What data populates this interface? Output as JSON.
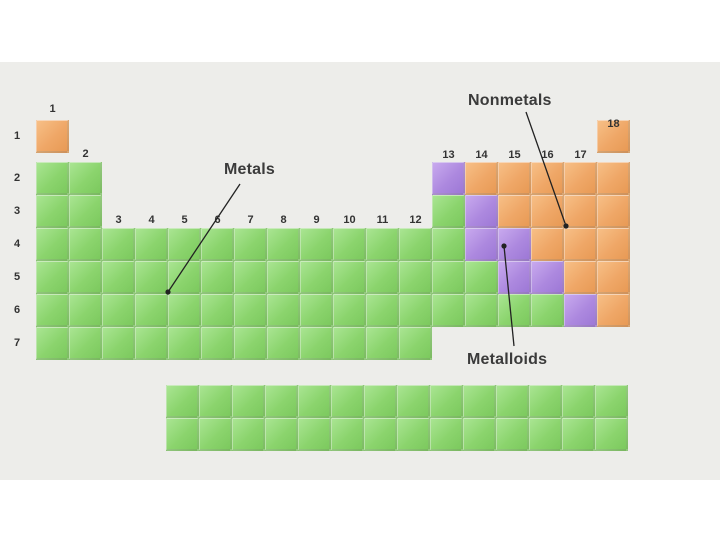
{
  "groups": [
    "1",
    "2",
    "3",
    "4",
    "5",
    "6",
    "7",
    "8",
    "9",
    "10",
    "11",
    "12",
    "13",
    "14",
    "15",
    "16",
    "17",
    "18"
  ],
  "periods": [
    "1",
    "2",
    "3",
    "4",
    "5",
    "6",
    "7"
  ],
  "labels": {
    "metals": "Metals",
    "nonmetals": "Nonmetals",
    "metalloids": "Metalloids"
  },
  "colors": {
    "metal": "#8bd46d",
    "nonmetal": "#efa767",
    "metalloid": "#ad89df",
    "background": "#ededea"
  },
  "metalloid_cells": [
    {
      "group": 13,
      "period": 2
    },
    {
      "group": 14,
      "period": 3
    },
    {
      "group": 14,
      "period": 4
    },
    {
      "group": 15,
      "period": 4
    },
    {
      "group": 15,
      "period": 5
    },
    {
      "group": 16,
      "period": 5
    },
    {
      "group": 17,
      "period": 6
    }
  ],
  "nonmetal_cells": [
    {
      "group": 1,
      "period": 1
    },
    {
      "group": 18,
      "period": 1
    },
    {
      "group": 14,
      "period": 2
    },
    {
      "group": 15,
      "period": 2
    },
    {
      "group": 16,
      "period": 2
    },
    {
      "group": 17,
      "period": 2
    },
    {
      "group": 18,
      "period": 2
    },
    {
      "group": 15,
      "period": 3
    },
    {
      "group": 16,
      "period": 3
    },
    {
      "group": 17,
      "period": 3
    },
    {
      "group": 18,
      "period": 3
    },
    {
      "group": 16,
      "period": 4
    },
    {
      "group": 17,
      "period": 4
    },
    {
      "group": 18,
      "period": 4
    },
    {
      "group": 17,
      "period": 5
    },
    {
      "group": 18,
      "period": 5
    },
    {
      "group": 18,
      "period": 6
    }
  ],
  "f_block": {
    "rows": 2,
    "columns": 14
  }
}
